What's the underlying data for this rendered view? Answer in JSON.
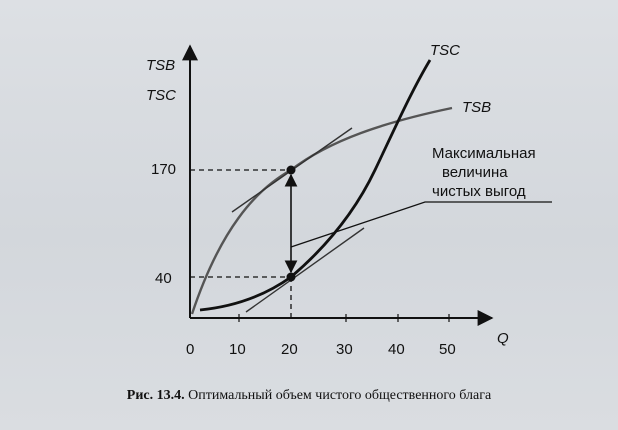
{
  "figure": {
    "y_label_top": "TSB",
    "y_label_bottom": "TSC",
    "x_label": "Q",
    "x_ticks": [
      "0",
      "10",
      "20",
      "30",
      "40",
      "50"
    ],
    "y_ticks": [
      "170",
      "40"
    ],
    "curve_labels": {
      "tsc": "TSC",
      "tsb": "TSB"
    },
    "annotation_lines": [
      "Максимальная",
      "величина",
      "чистых выгод"
    ]
  },
  "caption": {
    "label": "Рис. 13.4.",
    "text": "Оптимальный объем чистого общественного блага"
  },
  "colors": {
    "ink": "#111111",
    "tsb_curve": "#555555",
    "background": "#d7dbe0"
  }
}
